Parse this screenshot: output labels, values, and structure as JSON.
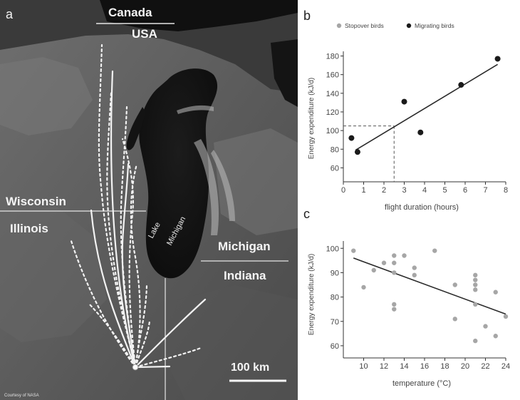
{
  "panels": {
    "a": "a",
    "b": "b",
    "c": "c"
  },
  "map": {
    "labels": {
      "canada": "Canada",
      "usa": "USA",
      "wisconsin": "Wisconsin",
      "illinois": "Illinois",
      "michigan": "Michigan",
      "indiana": "Indiana",
      "lake_1": "Lake",
      "lake_2": "Michigan"
    },
    "scale_bar": "100 km",
    "credit": "Courtesy of NASA"
  },
  "chart_data": [
    {
      "panel": "b",
      "type": "scatter",
      "legend": {
        "placement": "top",
        "entries": [
          {
            "name": "Stopover birds",
            "color": "#a6a6a6"
          },
          {
            "name": "Migrating birds",
            "color": "#1a1a1a"
          }
        ]
      },
      "xlabel": "flight duration (hours)",
      "ylabel": "Energy expenditure (kJ/d)",
      "xlim": [
        0,
        8
      ],
      "ylim": [
        45,
        185
      ],
      "xticks": [
        0,
        1,
        2,
        3,
        4,
        5,
        6,
        7,
        8
      ],
      "yticks": [
        60,
        80,
        100,
        120,
        140,
        160,
        180
      ],
      "series": [
        {
          "name": "Migrating birds",
          "color": "#1a1a1a",
          "points": [
            [
              0.4,
              92
            ],
            [
              0.7,
              77
            ],
            [
              3.0,
              131
            ],
            [
              3.8,
              98
            ],
            [
              5.8,
              149
            ],
            [
              7.6,
              177
            ]
          ]
        }
      ],
      "regression": {
        "x": [
          0.6,
          7.6
        ],
        "y": [
          79,
          171
        ]
      },
      "reference_lines": {
        "x": 2.5,
        "y": 105,
        "dashed": true
      },
      "grid": false
    },
    {
      "panel": "c",
      "type": "scatter",
      "xlabel": "temperature (°C)",
      "ylabel": "Energy expenditure (kJ/d)",
      "xlim": [
        8,
        24
      ],
      "ylim": [
        55,
        103
      ],
      "xticks": [
        10,
        12,
        14,
        16,
        18,
        20,
        22,
        24
      ],
      "xtick_labels": [
        "10",
        "12",
        "14",
        "16",
        "18",
        "20",
        "22",
        "24"
      ],
      "yticks": [
        60,
        70,
        80,
        90,
        100
      ],
      "series": [
        {
          "name": "Stopover birds",
          "color": "#a6a6a6",
          "points": [
            [
              9,
              99
            ],
            [
              10,
              84
            ],
            [
              11,
              91
            ],
            [
              12,
              94
            ],
            [
              13,
              97
            ],
            [
              13,
              94
            ],
            [
              13,
              90
            ],
            [
              13,
              77
            ],
            [
              13,
              75
            ],
            [
              14,
              97
            ],
            [
              15,
              92
            ],
            [
              15,
              89
            ],
            [
              17,
              99
            ],
            [
              19,
              85
            ],
            [
              19,
              71
            ],
            [
              21,
              89
            ],
            [
              21,
              87
            ],
            [
              21,
              85
            ],
            [
              21,
              83
            ],
            [
              21,
              77
            ],
            [
              21,
              62
            ],
            [
              22,
              68
            ],
            [
              23,
              82
            ],
            [
              23,
              64
            ],
            [
              24,
              72
            ]
          ]
        }
      ],
      "regression": {
        "x": [
          9,
          24
        ],
        "y": [
          96,
          73
        ]
      },
      "grid": false
    }
  ]
}
